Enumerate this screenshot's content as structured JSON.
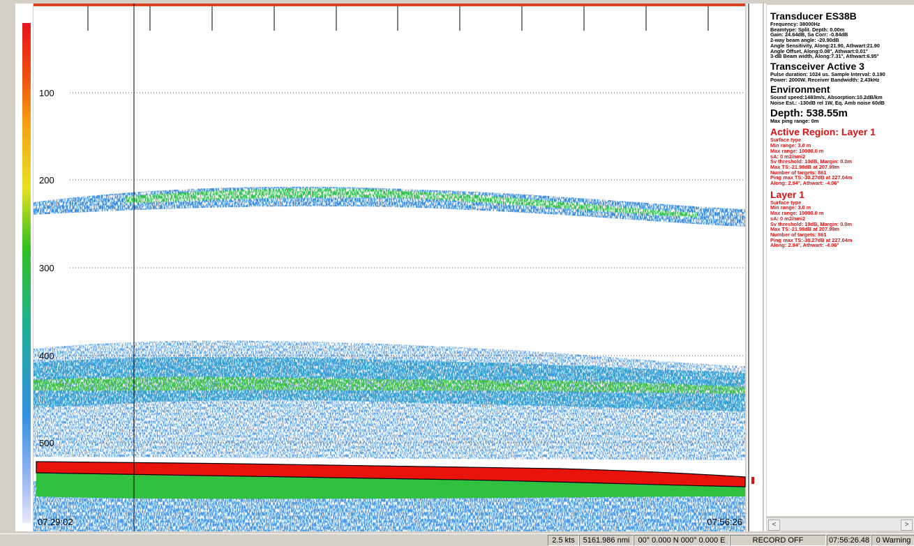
{
  "echogram": {
    "depth_labels": [
      "100",
      "200",
      "300",
      "400",
      "500"
    ],
    "start_time": "07:29:02",
    "end_time": "07:56:26"
  },
  "info_panel": {
    "sections": [
      {
        "heading": "Transducer ES38B",
        "lines": [
          "Frequency: 38000Hz",
          "Beamtype: Split. Depth: 0.00m",
          "Gain: 24.64dB, Sa Corr: -0.84dB",
          "2-way beam angle: -20.90dB",
          "Angle Sensitivity, Along:21.90, Athwart:21.90",
          "Angle Offset, Along:0.08°, Athwart:0.01°",
          "3-dB Beam width, Along:7.31°, Athwart:6.95°"
        ]
      },
      {
        "heading": "Transceiver Active  3",
        "lines": [
          "Pulse duration: 1024 us. Sample Interval: 0.190",
          "Power: 2000W. Receiver Bandwidth: 2.43kHz"
        ]
      },
      {
        "heading": "Environment",
        "lines": [
          "Sound speed:1483m/s, Absorption:10.2dB/km",
          "Noise Est.: -130dB rel 1W, Eq. Amb noise 60dB"
        ]
      },
      {
        "heading": "Depth: 538.55m",
        "lines": [
          "Max ping range: 0m"
        ]
      },
      {
        "heading": "Active Region: Layer 1",
        "lines": [
          "Surface type",
          "Min range: 3.0 m",
          "Max range: 10000.0 m",
          "sA: 0 m2/nmi2",
          "Sv threshold: 10dB, Margin: 0.0m",
          "Max TS:-21.98dB at 207.99m",
          "Number of targets:  861",
          "Ping max TS:-30.27dB at 227.04m",
          "Along:  2.94°, Athwart: -4.06°"
        ]
      },
      {
        "heading": "Layer 1",
        "lines": [
          "Surface type",
          "Min range: 3.0 m",
          "Max range: 10000.0 m",
          "sA: 0 m2/nmi2",
          "Sv threshold: 10dB, Margin: 0.0m",
          "Max TS:-21.98dB at 207.99m",
          "Number of targets:  861",
          "Ping max TS:-30.27dB at 227.04m",
          "Along:  2.94°, Athwart: -4.06°"
        ]
      }
    ]
  },
  "status_bar": [
    "2.5 kts",
    "5161.986 nmi",
    "00° 0.000 N  000° 0.000 E",
    "RECORD OFF",
    "07:56:26.48",
    "0 Warning"
  ]
}
